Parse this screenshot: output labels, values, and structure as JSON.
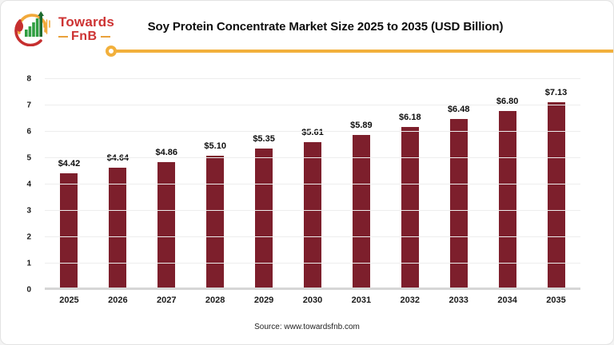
{
  "header": {
    "title": "Soy Protein Concentrate Market Size 2025 to 2035 (USD Billion)",
    "logo": {
      "brand_top": "Towards",
      "brand_bottom": "FnB",
      "icon": "bar-chart-spoon-fork-icon"
    }
  },
  "colors": {
    "bar": "#7d1f2c",
    "accent_yellow": "#f2b03c",
    "brand_red": "#cd3333",
    "logo_green": "#2f9e41",
    "logo_dark_green": "#1e6b2f",
    "gridline": "#ededed",
    "axis_line": "#d6d6d6"
  },
  "chart_data": {
    "type": "bar",
    "title": "Soy Protein Concentrate Market Size 2025 to 2035 (USD Billion)",
    "categories": [
      "2025",
      "2026",
      "2027",
      "2028",
      "2029",
      "2030",
      "2031",
      "2032",
      "2033",
      "2034",
      "2035"
    ],
    "values": [
      4.42,
      4.64,
      4.86,
      5.1,
      5.35,
      5.61,
      5.89,
      6.18,
      6.48,
      6.8,
      7.13
    ],
    "labels": [
      "$4.42",
      "$4.64",
      "$4.86",
      "$5.10",
      "$5.35",
      "$5.61",
      "$5.89",
      "$6.18",
      "$6.48",
      "$6.80",
      "$7.13"
    ],
    "xlabel": "",
    "ylabel": "",
    "ylim": [
      0,
      8
    ],
    "yticks": [
      0,
      1,
      2,
      3,
      4,
      5,
      6,
      7,
      8
    ],
    "grid": true,
    "legend": false,
    "bar_color": "#7d1f2c"
  },
  "footer": {
    "source": "Source: www.towardsfnb.com"
  }
}
